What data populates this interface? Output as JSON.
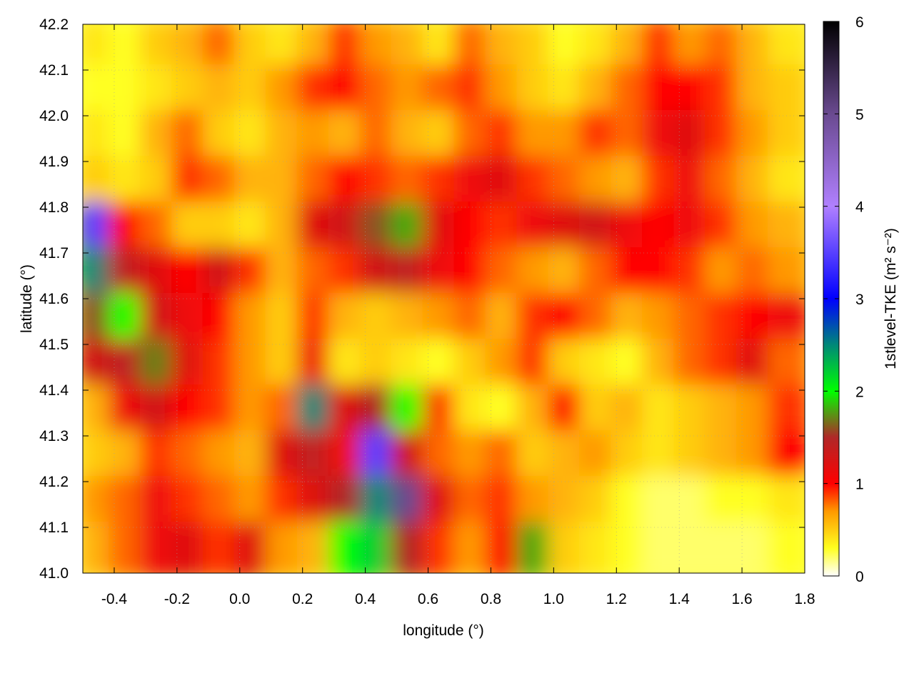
{
  "chart_data": {
    "type": "heatmap",
    "title": "",
    "xlabel": "longitude (°)",
    "ylabel": "latitude (°)",
    "colorbar_label": "1stlevel-TKE (m² s⁻²)",
    "colorbar_label_parts": {
      "base": "1stlevel-TKE (m",
      "sup1": "2",
      "mid": " s",
      "sup2": "-2",
      "end": ")"
    },
    "xlim": [
      -0.5,
      1.8
    ],
    "ylim": [
      41.0,
      42.2
    ],
    "clim": [
      0,
      6
    ],
    "grid": true,
    "x_ticks": [
      "-0.4",
      "-0.2",
      "0.0",
      "0.2",
      "0.4",
      "0.6",
      "0.8",
      "1.0",
      "1.2",
      "1.4",
      "1.6",
      "1.8"
    ],
    "y_ticks": [
      "41.0",
      "41.1",
      "41.2",
      "41.3",
      "41.4",
      "41.5",
      "41.6",
      "41.7",
      "41.8",
      "41.9",
      "42.0",
      "42.1",
      "42.2"
    ],
    "c_ticks": [
      "0",
      "1",
      "2",
      "3",
      "4",
      "5",
      "6"
    ],
    "colormap": [
      {
        "v": 0,
        "color": "#ffffff"
      },
      {
        "v": 0.3,
        "color": "#ffff20"
      },
      {
        "v": 0.7,
        "color": "#ff9900"
      },
      {
        "v": 1,
        "color": "#ff0000"
      },
      {
        "v": 1.5,
        "color": "#b02828"
      },
      {
        "v": 2,
        "color": "#00ff00"
      },
      {
        "v": 2.5,
        "color": "#008878"
      },
      {
        "v": 3,
        "color": "#0000ff"
      },
      {
        "v": 4,
        "color": "#b080ff"
      },
      {
        "v": 5,
        "color": "#6a4a90"
      },
      {
        "v": 6,
        "color": "#000000"
      }
    ],
    "grid_lon": [
      -0.45,
      -0.35,
      -0.25,
      -0.15,
      -0.05,
      0.05,
      0.15,
      0.25,
      0.35,
      0.45,
      0.55,
      0.65,
      0.75,
      0.85,
      0.95,
      1.05,
      1.15,
      1.25,
      1.35,
      1.45,
      1.55,
      1.65,
      1.75
    ],
    "grid_lat": [
      42.15,
      42.05,
      41.95,
      41.85,
      41.75,
      41.65,
      41.55,
      41.45,
      41.35,
      41.25,
      41.15,
      41.05
    ],
    "values": [
      [
        0.4,
        0.3,
        0.5,
        0.6,
        0.8,
        0.5,
        0.4,
        0.6,
        0.9,
        0.7,
        0.6,
        0.4,
        0.8,
        0.6,
        0.5,
        0.3,
        0.4,
        0.6,
        0.9,
        0.7,
        0.8,
        0.6,
        0.4
      ],
      [
        0.3,
        0.3,
        0.4,
        0.5,
        0.6,
        0.5,
        0.7,
        0.9,
        1.0,
        0.8,
        0.7,
        0.8,
        0.9,
        0.7,
        0.5,
        0.4,
        0.6,
        0.8,
        1.0,
        1.0,
        0.9,
        0.6,
        0.5
      ],
      [
        0.4,
        0.3,
        0.6,
        0.8,
        0.5,
        0.4,
        0.6,
        0.7,
        0.6,
        0.8,
        0.6,
        0.5,
        0.8,
        0.9,
        0.7,
        0.7,
        0.9,
        0.8,
        1.1,
        1.2,
        0.9,
        0.7,
        0.5
      ],
      [
        0.5,
        0.4,
        0.5,
        0.9,
        0.8,
        0.6,
        0.6,
        0.8,
        1.0,
        0.9,
        0.8,
        0.9,
        1.1,
        1.2,
        0.9,
        0.8,
        0.7,
        0.6,
        0.9,
        1.1,
        0.8,
        0.6,
        0.4
      ],
      [
        3.5,
        1.0,
        0.8,
        0.5,
        0.5,
        0.4,
        0.6,
        1.2,
        1.3,
        1.6,
        1.8,
        1.2,
        1.0,
        0.9,
        1.1,
        1.2,
        1.3,
        1.1,
        1.0,
        1.1,
        0.9,
        0.7,
        0.6
      ],
      [
        2.5,
        1.4,
        1.2,
        1.0,
        1.3,
        0.9,
        0.6,
        0.8,
        0.9,
        1.3,
        1.4,
        1.1,
        1.0,
        0.8,
        0.7,
        0.6,
        0.8,
        1.0,
        1.0,
        0.9,
        0.7,
        0.8,
        0.7
      ],
      [
        1.6,
        2.0,
        1.3,
        1.1,
        1.0,
        0.7,
        0.5,
        0.9,
        0.6,
        0.5,
        0.6,
        0.7,
        0.8,
        0.6,
        0.9,
        1.0,
        0.8,
        0.6,
        0.7,
        0.8,
        0.9,
        1.0,
        1.1
      ],
      [
        1.3,
        1.4,
        1.7,
        1.2,
        0.9,
        0.7,
        0.5,
        1.1,
        0.4,
        0.5,
        0.4,
        0.3,
        0.5,
        0.7,
        0.9,
        0.5,
        0.4,
        0.3,
        0.6,
        0.8,
        0.9,
        1.2,
        0.8
      ],
      [
        0.6,
        1.1,
        1.3,
        1.0,
        0.9,
        0.7,
        0.8,
        2.5,
        1.2,
        1.5,
        2.0,
        0.9,
        0.4,
        0.3,
        0.6,
        1.0,
        0.5,
        0.6,
        0.4,
        0.5,
        0.6,
        0.7,
        0.9
      ],
      [
        0.5,
        0.6,
        0.9,
        0.8,
        0.7,
        0.6,
        1.2,
        1.4,
        1.1,
        3.5,
        1.3,
        0.8,
        0.7,
        0.8,
        0.5,
        0.6,
        0.7,
        0.5,
        0.4,
        0.5,
        0.6,
        0.7,
        1.0
      ],
      [
        0.7,
        0.8,
        1.1,
        0.9,
        0.8,
        0.7,
        0.9,
        1.2,
        1.5,
        2.5,
        5.0,
        1.2,
        0.8,
        0.9,
        0.7,
        0.6,
        0.5,
        0.3,
        0.2,
        0.2,
        0.3,
        0.3,
        0.4
      ],
      [
        0.6,
        0.8,
        1.1,
        1.2,
        0.9,
        1.2,
        0.7,
        0.6,
        2.0,
        2.2,
        1.5,
        0.9,
        0.7,
        1.0,
        1.8,
        0.5,
        0.4,
        0.3,
        0.2,
        0.2,
        0.2,
        0.2,
        0.3
      ]
    ]
  }
}
